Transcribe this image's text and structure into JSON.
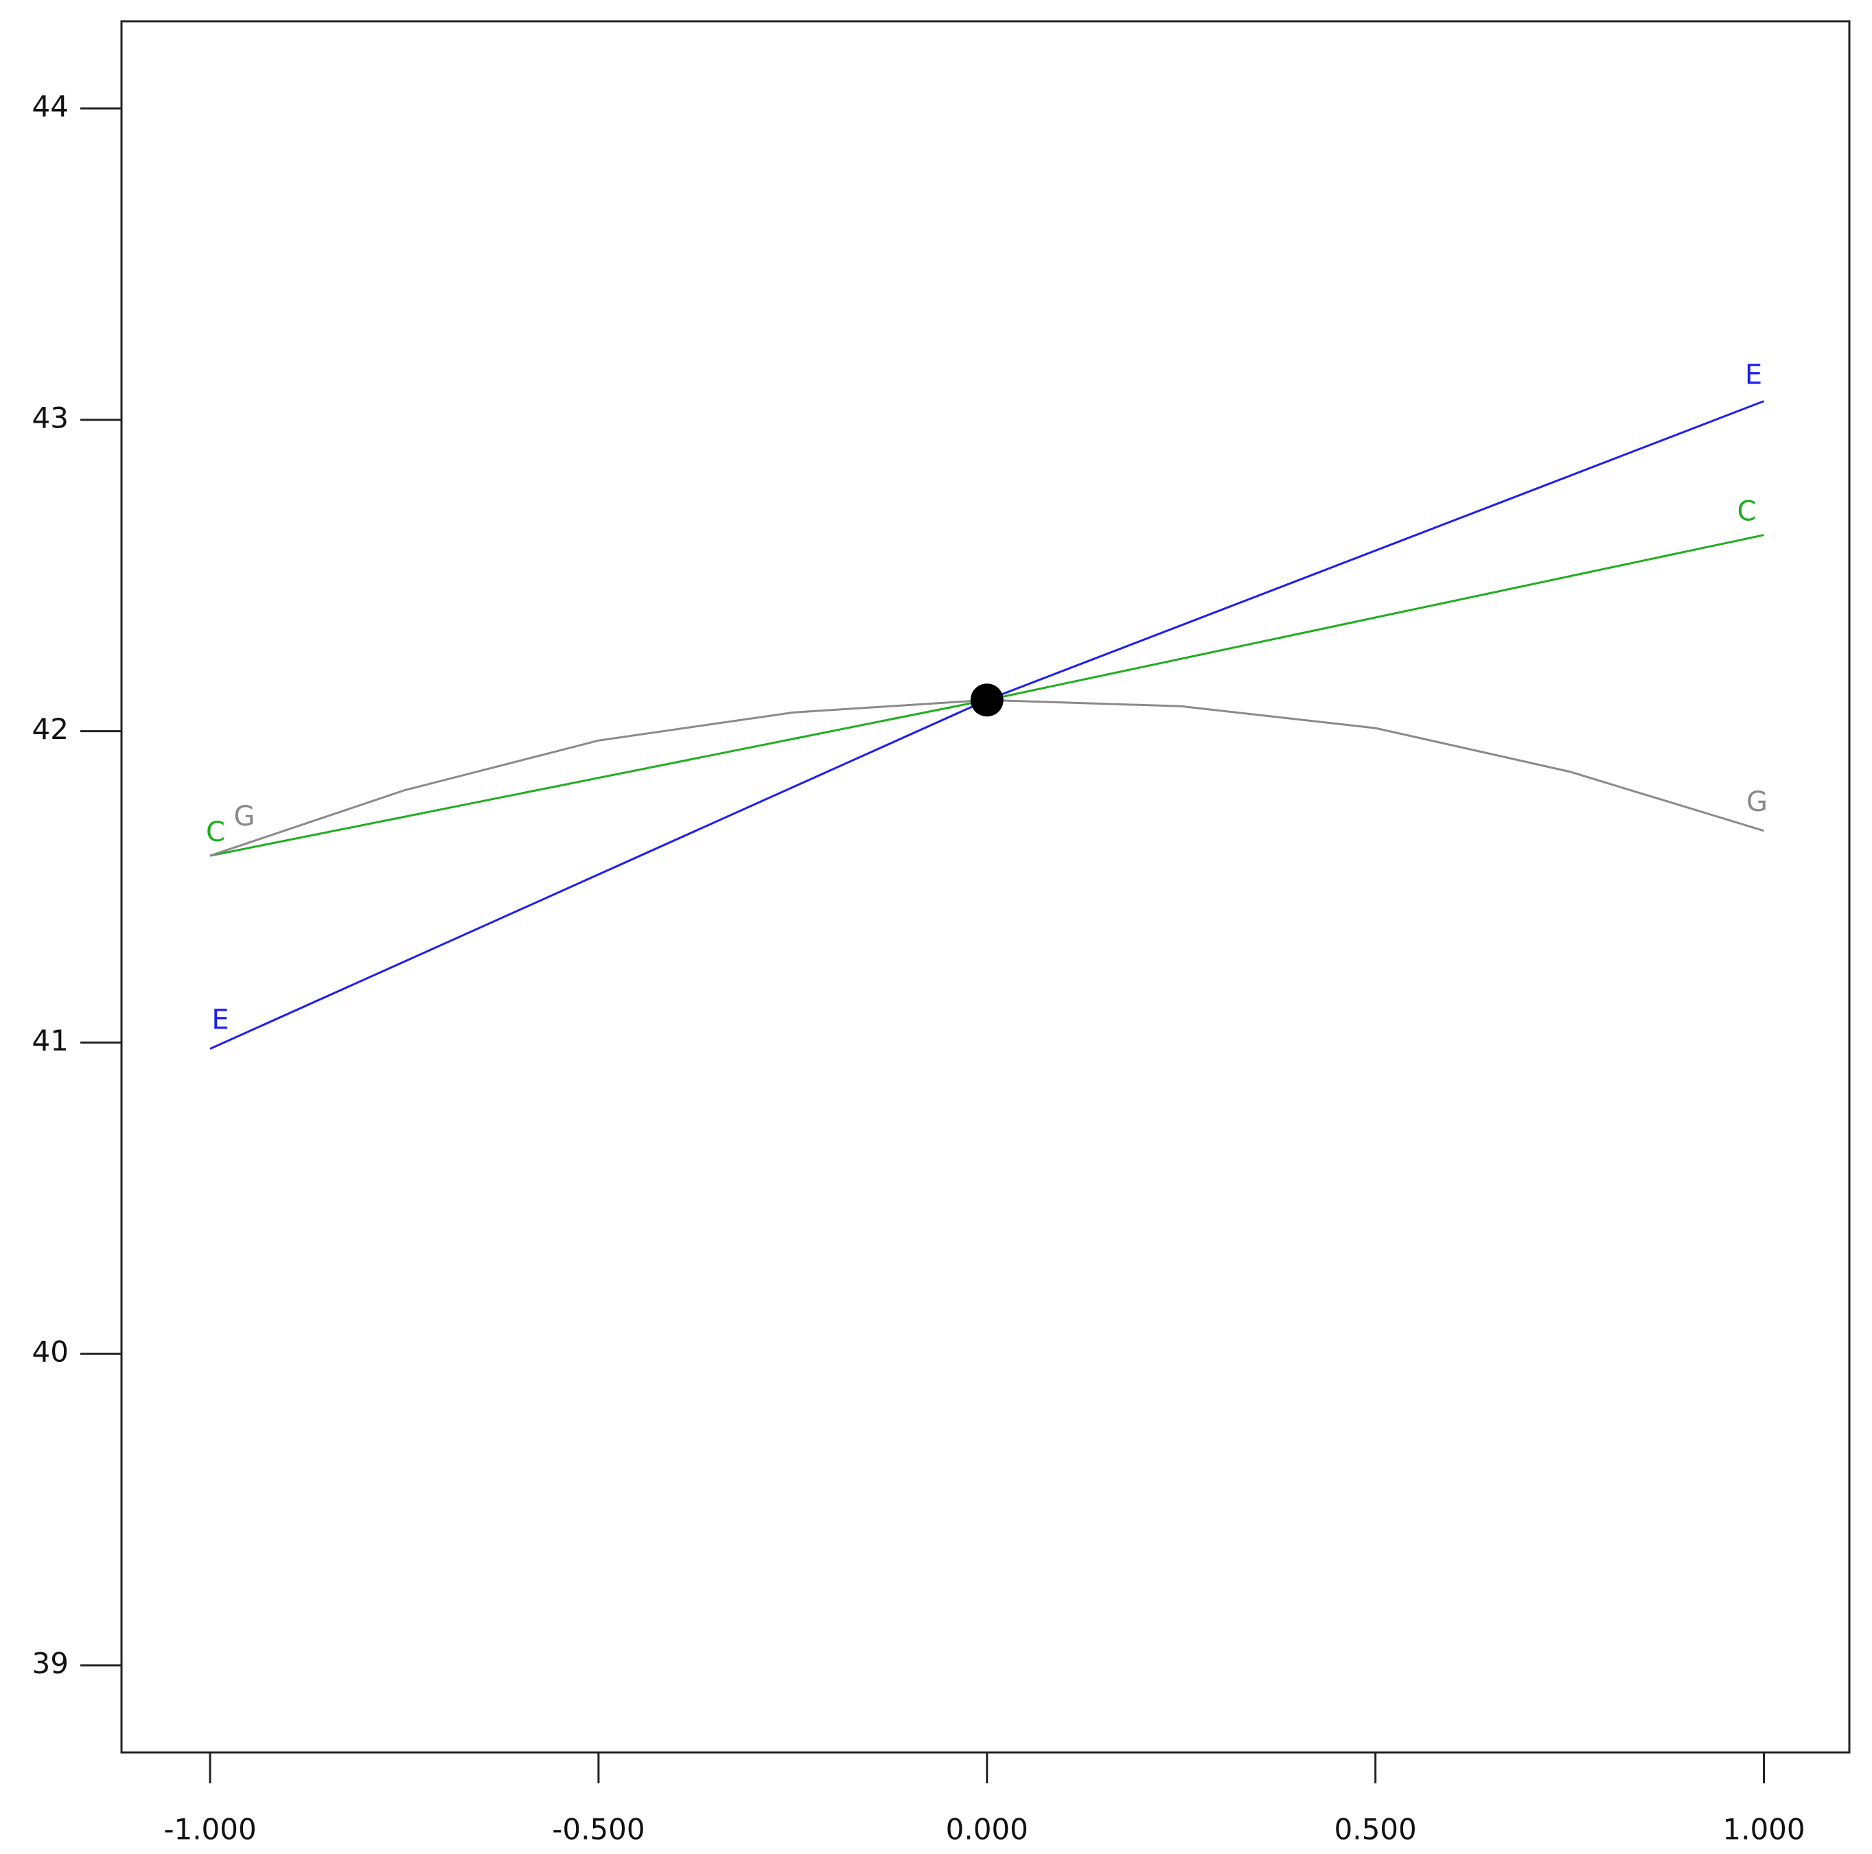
{
  "chart_data": {
    "type": "line",
    "xlim": [
      -1.114,
      1.11
    ],
    "ylim": [
      38.72,
      44.28
    ],
    "xticks": [
      {
        "value": -1,
        "label": "-1.000"
      },
      {
        "value": -0.5,
        "label": "-0.500"
      },
      {
        "value": 0,
        "label": "0.000"
      },
      {
        "value": 0.5,
        "label": "0.500"
      },
      {
        "value": 1,
        "label": "1.000"
      }
    ],
    "yticks": [
      39,
      40,
      41,
      42,
      43,
      44
    ],
    "series": [
      {
        "name": "E",
        "color": "#1f1ff0",
        "x": [
          -1,
          0,
          1
        ],
        "values": [
          40.98,
          42.1,
          43.06
        ]
      },
      {
        "name": "C",
        "color": "#1fae1f",
        "x": [
          -1,
          0,
          1
        ],
        "values": [
          41.6,
          42.1,
          42.63
        ]
      },
      {
        "name": "G",
        "color": "#8a8a8a",
        "x": [
          -1,
          -0.75,
          -0.5,
          -0.25,
          0,
          0.25,
          0.5,
          0.75,
          1
        ],
        "values": [
          41.6,
          41.81,
          41.97,
          42.06,
          42.1,
          42.08,
          42.01,
          41.87,
          41.68
        ]
      }
    ],
    "point": {
      "x": 0,
      "y": 42.1,
      "color": "#000000"
    }
  }
}
